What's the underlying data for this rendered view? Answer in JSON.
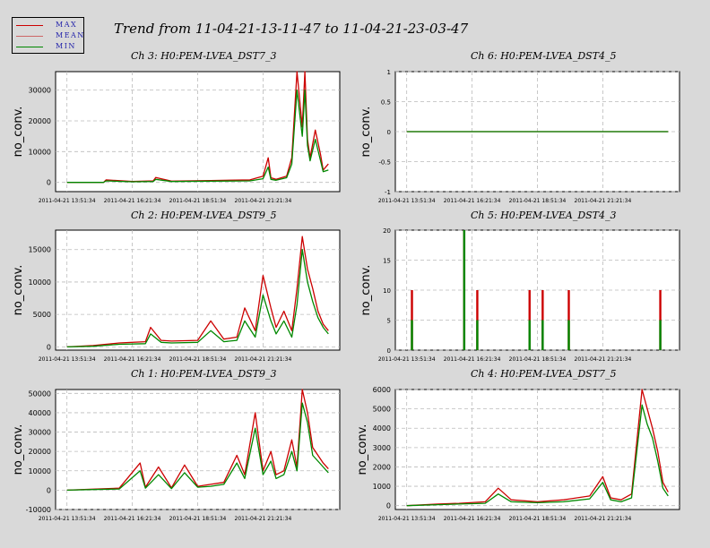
{
  "title": "Trend from 11-04-21-13-11-47 to 11-04-21-23-03-47",
  "legend": [
    {
      "label": "MAX",
      "color": "#cc0000"
    },
    {
      "label": "MEAN",
      "color": "#cc6666"
    },
    {
      "label": "MIN",
      "color": "#008800"
    }
  ],
  "colors": {
    "max": "#cc0000",
    "min": "#008800",
    "grid": "#bbbbbb"
  },
  "x_tick_labels": [
    "2011-04-21 13:51:34",
    "2011-04-21 16:21:34",
    "2011-04-21 18:51:34",
    "2011-04-21 21:21:34"
  ],
  "chart_data": [
    {
      "type": "line",
      "title": "Ch 3: H0:PEM-LVEA_DST7_3",
      "ylabel": "no_conv.",
      "ylim": [
        -3000,
        36000
      ],
      "yticks": [
        0,
        10000,
        20000,
        30000
      ],
      "x": [
        0,
        0.08,
        0.14,
        0.15,
        0.25,
        0.33,
        0.34,
        0.4,
        0.55,
        0.7,
        0.75,
        0.77,
        0.78,
        0.8,
        0.84,
        0.86,
        0.88,
        0.9,
        0.91,
        0.92,
        0.93,
        0.95,
        0.97,
        0.98,
        1.0
      ],
      "series": [
        {
          "name": "MAX",
          "values": [
            0,
            0,
            0,
            800,
            300,
            500,
            1600,
            400,
            600,
            800,
            2000,
            8000,
            1500,
            1000,
            2000,
            8000,
            36000,
            18000,
            36000,
            14000,
            8000,
            17000,
            9000,
            4000,
            6000
          ]
        },
        {
          "name": "MIN",
          "values": [
            0,
            0,
            0,
            500,
            200,
            300,
            1000,
            300,
            400,
            500,
            1200,
            5000,
            1000,
            700,
            1500,
            6000,
            30000,
            15000,
            30000,
            12000,
            7000,
            14000,
            7000,
            3500,
            4000
          ]
        }
      ]
    },
    {
      "type": "line",
      "title": "Ch 6: H0:PEM-LVEA_DST4_5",
      "ylabel": "no_conv.",
      "ylim": [
        -1,
        1
      ],
      "yticks": [
        -1,
        -0.5,
        0,
        0.5,
        1
      ],
      "x": [
        0,
        1
      ],
      "series": [
        {
          "name": "MAX",
          "values": [
            0,
            0
          ]
        },
        {
          "name": "MIN",
          "values": [
            0,
            0
          ]
        }
      ]
    },
    {
      "type": "line",
      "title": "Ch 2: H0:PEM-LVEA_DST9_5",
      "ylabel": "no_conv.",
      "ylim": [
        -500,
        18000
      ],
      "yticks": [
        0,
        5000,
        10000,
        15000
      ],
      "x": [
        0,
        0.1,
        0.2,
        0.3,
        0.32,
        0.36,
        0.4,
        0.5,
        0.55,
        0.6,
        0.65,
        0.68,
        0.72,
        0.75,
        0.78,
        0.8,
        0.83,
        0.86,
        0.88,
        0.9,
        0.92,
        0.94,
        0.96,
        0.98,
        1.0
      ],
      "series": [
        {
          "name": "MAX",
          "values": [
            0,
            200,
            600,
            800,
            3000,
            1000,
            900,
            1000,
            4000,
            1200,
            1500,
            6000,
            2500,
            11000,
            6000,
            3000,
            5500,
            2500,
            9000,
            17000,
            12000,
            9000,
            5500,
            3500,
            2500
          ]
        },
        {
          "name": "MIN",
          "values": [
            0,
            100,
            400,
            500,
            2000,
            700,
            600,
            700,
            2500,
            800,
            1000,
            4000,
            1500,
            8000,
            4000,
            2000,
            4000,
            1500,
            6500,
            15000,
            10000,
            7000,
            4500,
            3000,
            2000
          ]
        }
      ]
    },
    {
      "type": "bar",
      "title": "Ch 5: H0:PEM-LVEA_DST4_3",
      "ylabel": "no_conv.",
      "ylim": [
        0,
        20
      ],
      "yticks": [
        0,
        5,
        10,
        15,
        20
      ],
      "x": [
        0.02,
        0.22,
        0.27,
        0.47,
        0.52,
        0.62,
        0.97
      ],
      "series": [
        {
          "name": "MAX",
          "values": [
            10,
            20,
            10,
            10,
            10,
            10,
            10
          ]
        },
        {
          "name": "MIN",
          "values": [
            5,
            20,
            5,
            5,
            5,
            5,
            5
          ]
        }
      ]
    },
    {
      "type": "line",
      "title": "Ch 1: H0:PEM-LVEA_DST9_3",
      "ylabel": "no_conv.",
      "ylim": [
        -10000,
        52000
      ],
      "yticks": [
        -10000,
        0,
        10000,
        20000,
        30000,
        40000,
        50000
      ],
      "x": [
        0,
        0.1,
        0.2,
        0.28,
        0.3,
        0.35,
        0.4,
        0.45,
        0.5,
        0.55,
        0.6,
        0.65,
        0.68,
        0.72,
        0.75,
        0.78,
        0.8,
        0.83,
        0.86,
        0.88,
        0.9,
        0.92,
        0.94,
        0.96,
        0.98,
        1.0
      ],
      "series": [
        {
          "name": "MAX",
          "values": [
            0,
            500,
            1000,
            14000,
            1500,
            12000,
            1200,
            13000,
            2000,
            3000,
            4000,
            18000,
            8000,
            40000,
            10000,
            20000,
            8000,
            10000,
            26000,
            12000,
            52000,
            40000,
            22000,
            18000,
            14000,
            11000
          ]
        },
        {
          "name": "MIN",
          "values": [
            0,
            300,
            600,
            10000,
            1000,
            8000,
            800,
            9000,
            1500,
            2000,
            3000,
            14000,
            6000,
            32000,
            8000,
            15000,
            6000,
            8000,
            20000,
            10000,
            45000,
            35000,
            18000,
            15000,
            12000,
            9000
          ]
        }
      ]
    },
    {
      "type": "line",
      "title": "Ch 4: H0:PEM-LVEA_DST7_5",
      "ylabel": "no_conv.",
      "ylim": [
        -200,
        6000
      ],
      "yticks": [
        0,
        1000,
        2000,
        3000,
        4000,
        5000,
        6000
      ],
      "x": [
        0,
        0.12,
        0.2,
        0.3,
        0.35,
        0.4,
        0.5,
        0.6,
        0.7,
        0.75,
        0.78,
        0.82,
        0.86,
        0.9,
        0.92,
        0.94,
        0.96,
        0.98,
        1.0
      ],
      "series": [
        {
          "name": "MAX",
          "values": [
            0,
            80,
            120,
            200,
            900,
            300,
            200,
            300,
            500,
            1500,
            400,
            300,
            600,
            6000,
            5000,
            4000,
            2800,
            1200,
            700
          ]
        },
        {
          "name": "MIN",
          "values": [
            0,
            50,
            80,
            120,
            600,
            200,
            150,
            200,
            350,
            1200,
            300,
            200,
            400,
            5200,
            4200,
            3500,
            2300,
            900,
            500
          ]
        }
      ]
    }
  ]
}
